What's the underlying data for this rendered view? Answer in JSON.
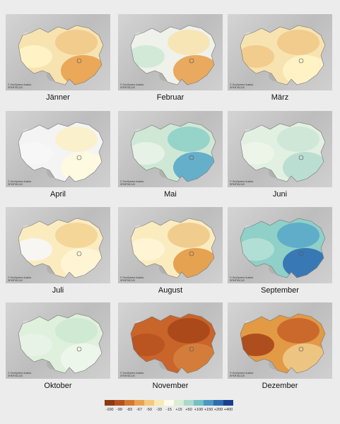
{
  "maps": [
    {
      "month": "Jänner",
      "colors": [
        "#f7e3b0",
        "#f0c98a",
        "#e8a14f",
        "#fff3c8"
      ]
    },
    {
      "month": "Februar",
      "colors": [
        "#eef2ea",
        "#f7e3b0",
        "#e8a14f",
        "#cfe8d6"
      ]
    },
    {
      "month": "März",
      "colors": [
        "#f7e3b0",
        "#f0c98a",
        "#fff3c8",
        "#f0c98a"
      ]
    },
    {
      "month": "April",
      "colors": [
        "#f4f4f4",
        "#fbf0c8",
        "#fff9df",
        "#f7f7f7"
      ]
    },
    {
      "month": "Mai",
      "colors": [
        "#cfe8d6",
        "#8fd0c8",
        "#5aa9c9",
        "#e8f3e8"
      ]
    },
    {
      "month": "Juni",
      "colors": [
        "#e2f0e2",
        "#cde6d6",
        "#b6dcd0",
        "#eef5ea"
      ]
    },
    {
      "month": "Juli",
      "colors": [
        "#fbecc0",
        "#f3d493",
        "#fff6d6",
        "#f7f7f7"
      ]
    },
    {
      "month": "August",
      "colors": [
        "#fbecc0",
        "#f0c98a",
        "#e29a45",
        "#fff6d6"
      ]
    },
    {
      "month": "September",
      "colors": [
        "#8fd0c8",
        "#5aa9c9",
        "#2f6fb3",
        "#b6e0d6"
      ]
    },
    {
      "month": "Oktober",
      "colors": [
        "#dff0dd",
        "#cde8d1",
        "#eef6ec",
        "#e8f3e8"
      ]
    },
    {
      "month": "November",
      "colors": [
        "#c9642a",
        "#a8461a",
        "#d5803d",
        "#b8521f"
      ]
    },
    {
      "month": "Dezember",
      "colors": [
        "#e29a45",
        "#c9642a",
        "#f0c98a",
        "#a8461a"
      ]
    }
  ],
  "credit": [
    "© GeoSphere Austria",
    "SPARTACUS"
  ],
  "legend": {
    "labels": [
      "-100",
      "-99",
      "-83",
      "-67",
      "-50",
      "-33",
      "-15",
      "+15",
      "+50",
      "+100",
      "+150",
      "+200",
      "+400"
    ],
    "colors": [
      "#8c3a12",
      "#b4521e",
      "#d4792f",
      "#eaa14f",
      "#f5c97e",
      "#fbe8b3",
      "#fdfbea",
      "#d9ecd6",
      "#a8dacb",
      "#74c0c6",
      "#4a98c4",
      "#2d6db0",
      "#1b3f8f"
    ]
  }
}
